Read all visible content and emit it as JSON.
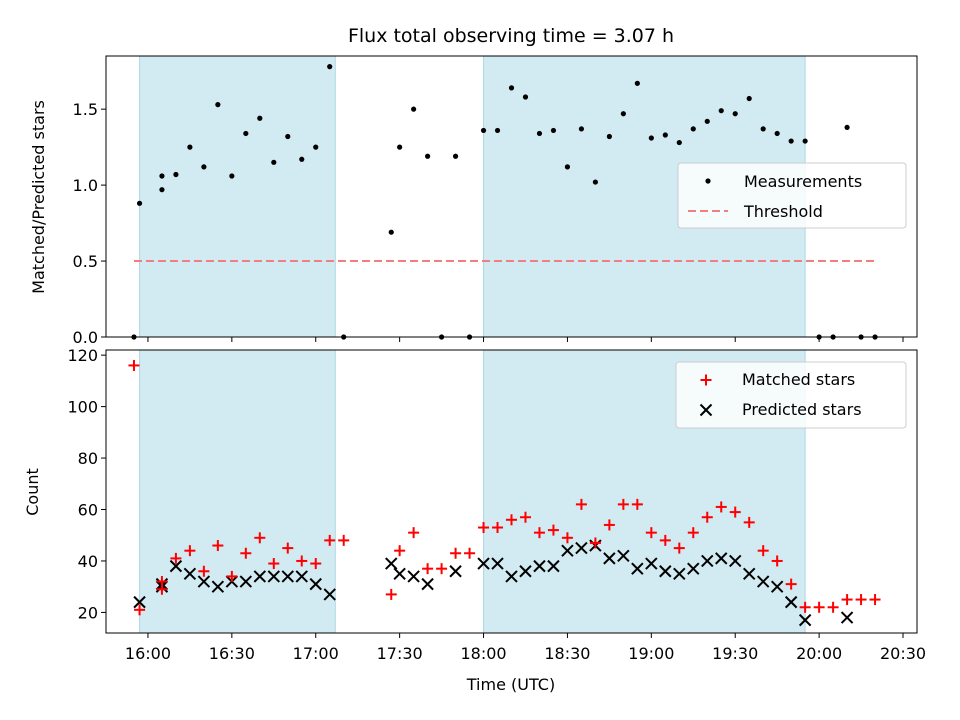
{
  "title": "Flux total observing time = 3.07 h",
  "top_panel": {
    "ylabel": "Matched/Predicted stars",
    "yticks": [
      "0.0",
      "0.5",
      "1.0",
      "1.5"
    ],
    "legend": {
      "measurements": "Measurements",
      "threshold": "Threshold"
    }
  },
  "bottom_panel": {
    "ylabel": "Count",
    "yticks": [
      "20",
      "40",
      "60",
      "80",
      "100",
      "120"
    ],
    "legend": {
      "matched": "Matched stars",
      "predicted": "Predicted stars"
    }
  },
  "xlabel": "Time (UTC)",
  "xticks": [
    "16:00",
    "16:30",
    "17:00",
    "17:30",
    "18:00",
    "18:30",
    "19:00",
    "19:30",
    "20:00",
    "20:30"
  ],
  "colors": {
    "shade": "#add8e6",
    "threshold": "#f08080",
    "matched": "#ff0000",
    "predicted": "#000000",
    "measurement": "#000000"
  },
  "chart_data": [
    {
      "type": "scatter",
      "title": "Flux total observing time = 3.07 h",
      "xlabel": "",
      "ylabel": "Matched/Predicted stars",
      "xlim": [
        "15:45",
        "20:35"
      ],
      "ylim": [
        0,
        1.85
      ],
      "shaded_intervals": [
        [
          "15:57",
          "17:07"
        ],
        [
          "18:00",
          "19:55"
        ]
      ],
      "threshold": {
        "name": "Threshold",
        "value": 0.5,
        "x_range": [
          "15:55",
          "20:20"
        ]
      },
      "series": [
        {
          "name": "Measurements",
          "points": [
            [
              "15:55",
              0.0
            ],
            [
              "15:57",
              0.88
            ],
            [
              "16:05",
              0.97
            ],
            [
              "16:05",
              1.06
            ],
            [
              "16:10",
              1.07
            ],
            [
              "16:15",
              1.25
            ],
            [
              "16:20",
              1.12
            ],
            [
              "16:25",
              1.53
            ],
            [
              "16:30",
              1.06
            ],
            [
              "16:35",
              1.34
            ],
            [
              "16:40",
              1.44
            ],
            [
              "16:45",
              1.15
            ],
            [
              "16:50",
              1.32
            ],
            [
              "16:55",
              1.17
            ],
            [
              "17:00",
              1.25
            ],
            [
              "17:05",
              1.78
            ],
            [
              "17:10",
              0.0
            ],
            [
              "17:27",
              0.69
            ],
            [
              "17:30",
              1.25
            ],
            [
              "17:35",
              1.5
            ],
            [
              "17:40",
              1.19
            ],
            [
              "17:45",
              0.0
            ],
            [
              "17:50",
              1.19
            ],
            [
              "17:55",
              0.0
            ],
            [
              "18:00",
              1.36
            ],
            [
              "18:05",
              1.36
            ],
            [
              "18:10",
              1.64
            ],
            [
              "18:15",
              1.58
            ],
            [
              "18:20",
              1.34
            ],
            [
              "18:25",
              1.36
            ],
            [
              "18:30",
              1.12
            ],
            [
              "18:35",
              1.37
            ],
            [
              "18:40",
              1.02
            ],
            [
              "18:45",
              1.32
            ],
            [
              "18:50",
              1.47
            ],
            [
              "18:55",
              1.67
            ],
            [
              "19:00",
              1.31
            ],
            [
              "19:05",
              1.33
            ],
            [
              "19:10",
              1.28
            ],
            [
              "19:15",
              1.37
            ],
            [
              "19:20",
              1.42
            ],
            [
              "19:25",
              1.49
            ],
            [
              "19:30",
              1.47
            ],
            [
              "19:35",
              1.57
            ],
            [
              "19:40",
              1.37
            ],
            [
              "19:45",
              1.34
            ],
            [
              "19:50",
              1.29
            ],
            [
              "19:55",
              1.29
            ],
            [
              "20:00",
              0.0
            ],
            [
              "20:05",
              0.0
            ],
            [
              "20:10",
              1.38
            ],
            [
              "20:15",
              0.0
            ],
            [
              "20:20",
              0.0
            ]
          ]
        }
      ]
    },
    {
      "type": "scatter",
      "xlabel": "Time (UTC)",
      "ylabel": "Count",
      "xlim": [
        "15:45",
        "20:35"
      ],
      "ylim": [
        12,
        122
      ],
      "shaded_intervals": [
        [
          "15:57",
          "17:07"
        ],
        [
          "18:00",
          "19:55"
        ]
      ],
      "series": [
        {
          "name": "Matched stars",
          "points": [
            [
              "15:55",
              116
            ],
            [
              "15:57",
              21
            ],
            [
              "16:05",
              29
            ],
            [
              "16:05",
              32
            ],
            [
              "16:10",
              41
            ],
            [
              "16:15",
              44
            ],
            [
              "16:20",
              36
            ],
            [
              "16:25",
              46
            ],
            [
              "16:30",
              34
            ],
            [
              "16:35",
              43
            ],
            [
              "16:40",
              49
            ],
            [
              "16:45",
              39
            ],
            [
              "16:50",
              45
            ],
            [
              "16:55",
              40
            ],
            [
              "17:00",
              39
            ],
            [
              "17:05",
              48
            ],
            [
              "17:10",
              48
            ],
            [
              "17:27",
              27
            ],
            [
              "17:30",
              44
            ],
            [
              "17:35",
              51
            ],
            [
              "17:40",
              37
            ],
            [
              "17:45",
              37
            ],
            [
              "17:50",
              43
            ],
            [
              "17:55",
              43
            ],
            [
              "18:00",
              53
            ],
            [
              "18:05",
              53
            ],
            [
              "18:10",
              56
            ],
            [
              "18:15",
              57
            ],
            [
              "18:20",
              51
            ],
            [
              "18:25",
              52
            ],
            [
              "18:30",
              49
            ],
            [
              "18:35",
              62
            ],
            [
              "18:40",
              47
            ],
            [
              "18:45",
              54
            ],
            [
              "18:50",
              62
            ],
            [
              "18:55",
              62
            ],
            [
              "19:00",
              51
            ],
            [
              "19:05",
              48
            ],
            [
              "19:10",
              45
            ],
            [
              "19:15",
              51
            ],
            [
              "19:20",
              57
            ],
            [
              "19:25",
              61
            ],
            [
              "19:30",
              59
            ],
            [
              "19:35",
              55
            ],
            [
              "19:40",
              44
            ],
            [
              "19:45",
              40
            ],
            [
              "19:50",
              31
            ],
            [
              "19:55",
              22
            ],
            [
              "20:00",
              22
            ],
            [
              "20:05",
              22
            ],
            [
              "20:10",
              25
            ],
            [
              "20:15",
              25
            ],
            [
              "20:20",
              25
            ]
          ]
        },
        {
          "name": "Predicted stars",
          "points": [
            [
              "15:57",
              24
            ],
            [
              "16:05",
              30
            ],
            [
              "16:05",
              31
            ],
            [
              "16:10",
              38
            ],
            [
              "16:15",
              35
            ],
            [
              "16:20",
              32
            ],
            [
              "16:25",
              30
            ],
            [
              "16:30",
              32
            ],
            [
              "16:35",
              32
            ],
            [
              "16:40",
              34
            ],
            [
              "16:45",
              34
            ],
            [
              "16:50",
              34
            ],
            [
              "16:55",
              34
            ],
            [
              "17:00",
              31
            ],
            [
              "17:05",
              27
            ],
            [
              "17:27",
              39
            ],
            [
              "17:30",
              35
            ],
            [
              "17:35",
              34
            ],
            [
              "17:40",
              31
            ],
            [
              "17:50",
              36
            ],
            [
              "18:00",
              39
            ],
            [
              "18:05",
              39
            ],
            [
              "18:10",
              34
            ],
            [
              "18:15",
              36
            ],
            [
              "18:20",
              38
            ],
            [
              "18:25",
              38
            ],
            [
              "18:30",
              44
            ],
            [
              "18:35",
              45
            ],
            [
              "18:40",
              46
            ],
            [
              "18:45",
              41
            ],
            [
              "18:50",
              42
            ],
            [
              "18:55",
              37
            ],
            [
              "19:00",
              39
            ],
            [
              "19:05",
              36
            ],
            [
              "19:10",
              35
            ],
            [
              "19:15",
              37
            ],
            [
              "19:20",
              40
            ],
            [
              "19:25",
              41
            ],
            [
              "19:30",
              40
            ],
            [
              "19:35",
              35
            ],
            [
              "19:40",
              32
            ],
            [
              "19:45",
              30
            ],
            [
              "19:50",
              24
            ],
            [
              "19:55",
              17
            ],
            [
              "20:10",
              18
            ]
          ]
        }
      ]
    }
  ]
}
